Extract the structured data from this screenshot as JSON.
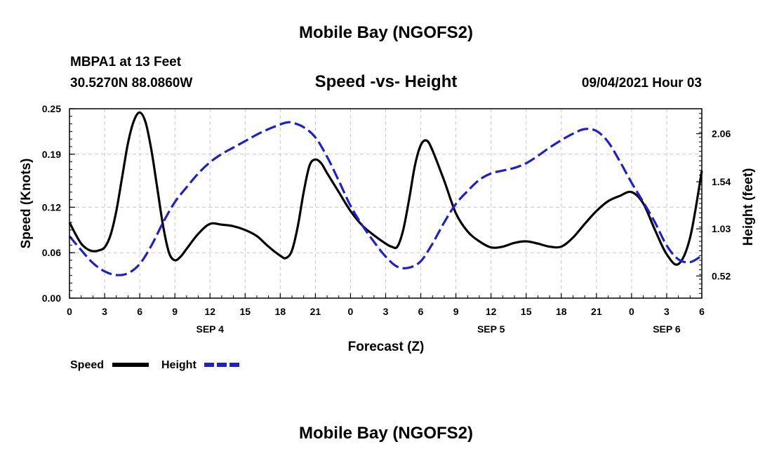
{
  "header": {
    "title": "Mobile Bay (NGOFS2)",
    "station": "MBPA1 at 13 Feet",
    "location": "30.5270N  88.0860W",
    "subtitle": "Speed -vs- Height",
    "datetime": "09/04/2021 Hour 03"
  },
  "footer": {
    "title": "Mobile Bay (NGOFS2)"
  },
  "colors": {
    "speed": "#000000",
    "height": "#1f1fd0",
    "grid": "#c8c8c8"
  },
  "chart_data": {
    "type": "line",
    "xlabel": "Forecast (Z)",
    "ylabel": "Speed (Knots)",
    "y2label": "Height (feet)",
    "x_range_hours": [
      0,
      54
    ],
    "x_tick_hours": [
      0,
      3,
      6,
      9,
      12,
      15,
      18,
      21,
      24,
      27,
      30,
      33,
      36,
      39,
      42,
      45,
      48,
      51,
      54
    ],
    "x_tick_labels": [
      "0",
      "3",
      "6",
      "9",
      "12",
      "15",
      "18",
      "21",
      "0",
      "3",
      "6",
      "9",
      "12",
      "15",
      "18",
      "21",
      "0",
      "3",
      "6"
    ],
    "date_labels": [
      {
        "text": "SEP 4",
        "hour": 12
      },
      {
        "text": "SEP 5",
        "hour": 36
      },
      {
        "text": "SEP 6",
        "hour": 51
      }
    ],
    "ylim": [
      0,
      0.25
    ],
    "y_ticks": [
      0.0,
      0.06,
      0.12,
      0.19,
      0.25
    ],
    "y_tick_labels": [
      "0.00",
      "0.06",
      "0.12",
      "0.19",
      "0.25"
    ],
    "y2lim": [
      0.28,
      2.33
    ],
    "y2_ticks": [
      0.52,
      1.03,
      1.54,
      2.06
    ],
    "y2_tick_labels": [
      "0.52",
      "1.03",
      "1.54",
      "2.06"
    ],
    "legend": [
      "Speed",
      "Height"
    ],
    "series": [
      {
        "name": "Speed",
        "axis": "left",
        "style": "solid",
        "x": [
          0,
          0.5,
          1,
          1.5,
          2,
          2.5,
          3,
          3.5,
          4,
          4.5,
          5,
          5.5,
          6,
          6.5,
          7,
          7.5,
          8,
          8.5,
          9,
          9.5,
          10,
          11,
          12,
          13,
          14,
          15,
          16,
          17,
          18,
          18.5,
          19,
          19.5,
          20,
          20.5,
          21,
          21.5,
          22,
          23,
          24,
          25,
          26,
          27,
          27.5,
          28,
          28.5,
          29,
          29.5,
          30,
          30.5,
          31,
          32,
          33,
          34,
          35,
          36,
          37,
          38,
          39,
          40,
          41,
          42,
          43,
          44,
          45,
          46,
          47,
          48,
          49,
          50,
          51,
          52,
          53,
          54
        ],
        "values": [
          0.1,
          0.085,
          0.072,
          0.065,
          0.062,
          0.063,
          0.067,
          0.083,
          0.115,
          0.16,
          0.205,
          0.234,
          0.245,
          0.232,
          0.195,
          0.145,
          0.095,
          0.06,
          0.05,
          0.055,
          0.065,
          0.085,
          0.098,
          0.097,
          0.095,
          0.09,
          0.082,
          0.068,
          0.056,
          0.053,
          0.063,
          0.095,
          0.14,
          0.175,
          0.183,
          0.178,
          0.165,
          0.14,
          0.115,
          0.096,
          0.083,
          0.072,
          0.068,
          0.068,
          0.09,
          0.13,
          0.175,
          0.202,
          0.208,
          0.195,
          0.155,
          0.112,
          0.088,
          0.075,
          0.067,
          0.068,
          0.073,
          0.075,
          0.072,
          0.068,
          0.068,
          0.08,
          0.098,
          0.115,
          0.128,
          0.135,
          0.14,
          0.125,
          0.09,
          0.058,
          0.045,
          0.08,
          0.168
        ]
      },
      {
        "name": "Height",
        "axis": "right",
        "style": "dashed",
        "x": [
          0,
          1,
          2,
          3,
          4,
          5,
          6,
          7,
          8,
          9,
          10,
          11,
          12,
          13,
          14,
          15,
          16,
          17,
          18,
          18.5,
          19,
          20,
          21,
          22,
          23,
          24,
          25,
          26,
          27,
          28,
          29,
          30,
          31,
          32,
          33,
          34,
          35,
          36,
          37,
          38,
          39,
          40,
          41,
          42,
          43,
          44,
          45,
          46,
          47,
          48,
          49,
          50,
          51,
          52,
          53,
          54
        ],
        "values": [
          0.95,
          0.8,
          0.66,
          0.57,
          0.53,
          0.55,
          0.65,
          0.85,
          1.1,
          1.32,
          1.48,
          1.63,
          1.75,
          1.84,
          1.91,
          1.98,
          2.05,
          2.11,
          2.16,
          2.18,
          2.18,
          2.13,
          2.02,
          1.81,
          1.55,
          1.28,
          1.07,
          0.89,
          0.73,
          0.62,
          0.61,
          0.68,
          0.87,
          1.1,
          1.3,
          1.44,
          1.56,
          1.63,
          1.66,
          1.69,
          1.74,
          1.82,
          1.91,
          1.99,
          2.06,
          2.11,
          2.09,
          1.97,
          1.76,
          1.53,
          1.32,
          1.1,
          0.85,
          0.7,
          0.67,
          0.74
        ]
      }
    ]
  }
}
